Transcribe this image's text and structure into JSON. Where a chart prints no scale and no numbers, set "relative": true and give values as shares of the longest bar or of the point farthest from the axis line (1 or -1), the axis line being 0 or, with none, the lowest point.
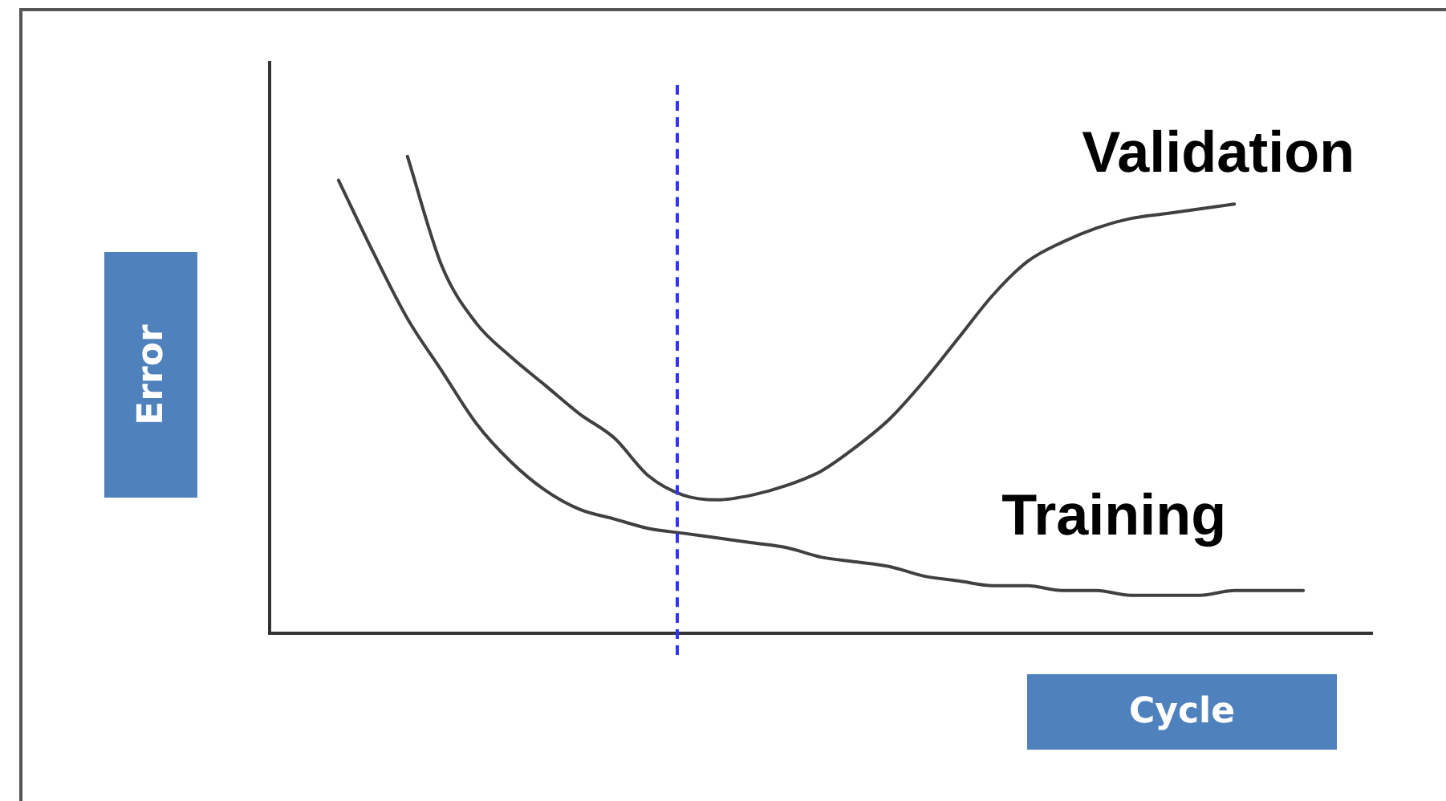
{
  "chart_data": {
    "type": "line",
    "relative": true,
    "xlabel": "Cycle",
    "ylabel": "Error",
    "legend": false,
    "grid": false,
    "marker": "none",
    "line_style": "solid",
    "categories": [
      null,
      null,
      null,
      null,
      null,
      null,
      null,
      null,
      null,
      null,
      null,
      null,
      null,
      null,
      null,
      null,
      null,
      null,
      null,
      null,
      null,
      null,
      null,
      null,
      null,
      null,
      null,
      null,
      null,
      null,
      null,
      null,
      null
    ],
    "series": [
      {
        "name": "Validation",
        "color": "#404040",
        "values": [
          null,
          null,
          null,
          null,
          1,
          0.77,
          0.65,
          0.58,
          0.52,
          0.46,
          0.41,
          0.33,
          0.29,
          0.28,
          0.29,
          0.31,
          0.34,
          0.39,
          0.45,
          0.53,
          0.62,
          0.71,
          0.78,
          0.82,
          0.85,
          0.87,
          0.88,
          0.89,
          0.9,
          null,
          null,
          null,
          null
        ]
      },
      {
        "name": "Training",
        "color": "#404040",
        "values": [
          null,
          null,
          0.95,
          0.8,
          0.66,
          0.55,
          0.44,
          0.36,
          0.3,
          0.26,
          0.24,
          0.22,
          0.21,
          0.2,
          0.19,
          0.18,
          0.16,
          0.15,
          0.14,
          0.12,
          0.11,
          0.1,
          0.1,
          0.09,
          0.09,
          0.08,
          0.08,
          0.08,
          0.09,
          0.09,
          0.09,
          null,
          null
        ]
      }
    ]
  }
}
